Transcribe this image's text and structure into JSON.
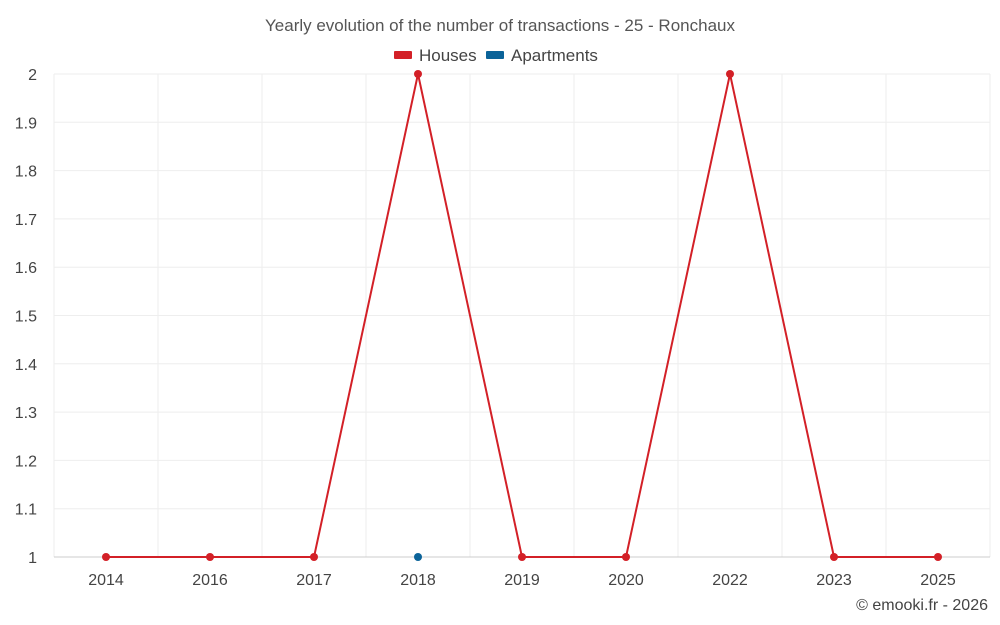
{
  "chart_data": {
    "type": "line",
    "title": "Yearly evolution of the number of transactions - 25 - Ronchaux",
    "categories": [
      "2014",
      "2016",
      "2017",
      "2018",
      "2019",
      "2020",
      "2022",
      "2023",
      "2025"
    ],
    "y_ticks": [
      "1",
      "1.1",
      "1.2",
      "1.3",
      "1.4",
      "1.5",
      "1.6",
      "1.7",
      "1.8",
      "1.9",
      "2"
    ],
    "ylim": [
      1,
      2
    ],
    "xlabel": "",
    "ylabel": "",
    "grid": true,
    "legend_position": "top-center",
    "series": [
      {
        "name": "Houses",
        "color": "#d32027",
        "values": [
          1,
          1,
          1,
          2,
          1,
          1,
          2,
          1,
          1
        ]
      },
      {
        "name": "Apartments",
        "color": "#0b6399",
        "values": [
          null,
          null,
          null,
          1,
          null,
          null,
          null,
          null,
          null
        ]
      }
    ]
  },
  "credit": "© emooki.fr - 2026"
}
